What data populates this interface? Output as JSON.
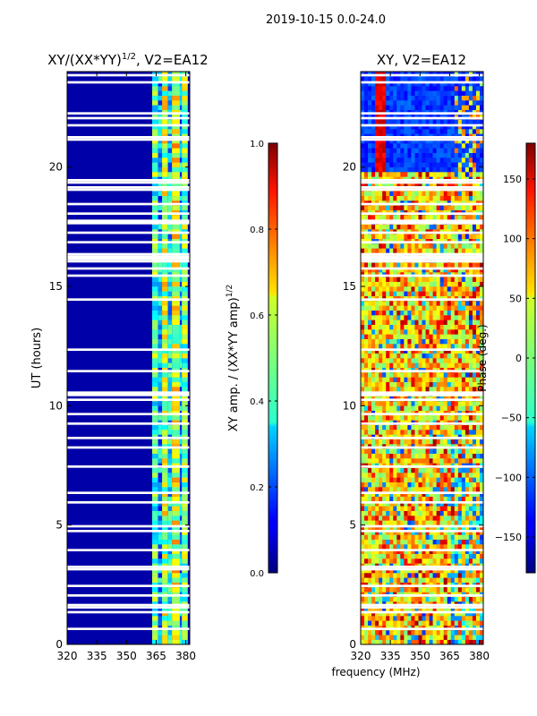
{
  "figure": {
    "suptitle": "2019-10-15 0.0-24.0"
  },
  "chart_data": [
    {
      "type": "heatmap",
      "title": "XY/(XX*YY)",
      "title_exponent": "1/2",
      "title_suffix": ", V2=EA12",
      "xlabel": "",
      "ylabel": "UT (hours)",
      "xlim": [
        320,
        382
      ],
      "ylim": [
        0,
        24
      ],
      "xticks": [
        320,
        335,
        350,
        365,
        380
      ],
      "yticks": [
        0,
        5,
        10,
        15,
        20
      ],
      "colorbar": {
        "label": "XY amp. / (XX*YY amp)",
        "label_exponent": "1/2",
        "range": [
          0.0,
          1.0
        ],
        "ticks": [
          "0.0",
          "0.2",
          "0.4",
          "0.6",
          "0.8",
          "1.0"
        ],
        "tick_values": [
          0.0,
          0.2,
          0.4,
          0.6,
          0.8,
          1.0
        ],
        "colormap": "jet"
      },
      "description": "Background near 0 across most frequencies; elevated amplitudes (0.3-0.8) in bands between roughly 363 and 382 MHz; white gaps where data flagged.",
      "bands": [
        {
          "x_start": 363,
          "x_end": 366,
          "value": 0.45
        },
        {
          "x_start": 366,
          "x_end": 368,
          "value": 0.3
        },
        {
          "x_start": 368,
          "x_end": 371,
          "value": 0.55
        },
        {
          "x_start": 371,
          "x_end": 373,
          "value": 0.35
        },
        {
          "x_start": 373,
          "x_end": 377,
          "value": 0.6
        },
        {
          "x_start": 377,
          "x_end": 378,
          "value": 0.3
        },
        {
          "x_start": 378,
          "x_end": 381,
          "value": 0.5
        }
      ]
    },
    {
      "type": "heatmap",
      "title": "XY, V2=EA12",
      "xlabel": "frequency (MHz)",
      "ylabel": "",
      "xlim": [
        320,
        382
      ],
      "ylim": [
        0,
        24
      ],
      "xticks": [
        320,
        335,
        350,
        365,
        380
      ],
      "yticks": [
        0,
        5,
        10,
        15,
        20
      ],
      "colorbar": {
        "label": "Phase (deg.)",
        "range": [
          -180,
          180
        ],
        "ticks": [
          "150",
          "100",
          "50",
          "0",
          "−50",
          "−100",
          "−150"
        ],
        "tick_values": [
          150,
          100,
          50,
          0,
          -50,
          -100,
          -150
        ],
        "colormap": "jet"
      },
      "description": "Phase varies strongly with time and frequency; mostly near 0-90 deg (green/yellow) from 1 to 19 UT, near -150 deg (blue) with a red stripe near 330 MHz from 19 to 24 UT."
    }
  ]
}
